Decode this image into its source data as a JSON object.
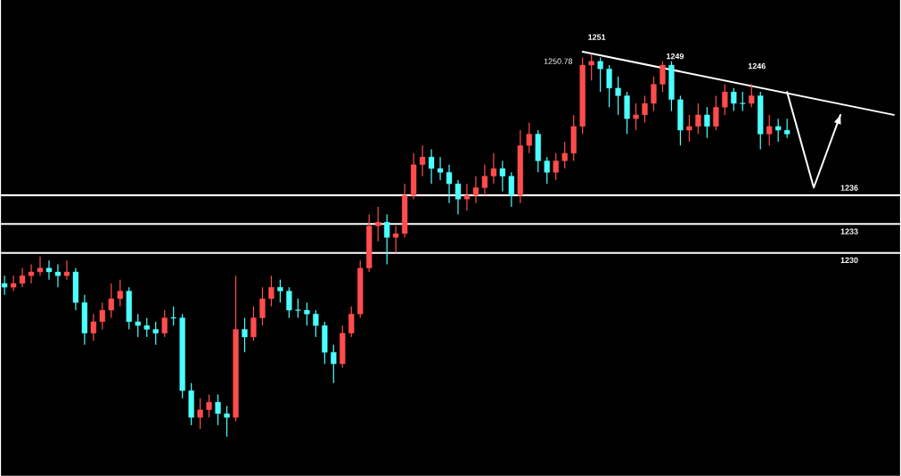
{
  "chart_data": {
    "type": "candlestick",
    "ylim": [
      1206.7,
      1256.4
    ],
    "categories": [
      null,
      null,
      null,
      null,
      null,
      null,
      null,
      null,
      null,
      null,
      null,
      null,
      null,
      null,
      null,
      null,
      null,
      null,
      null,
      null,
      null,
      null,
      null,
      null,
      null,
      null,
      null,
      null,
      null,
      null,
      null,
      null,
      null,
      null,
      null,
      null,
      null,
      null,
      null,
      null,
      null,
      null,
      null,
      null,
      null,
      null,
      null,
      null,
      null,
      null,
      null,
      null,
      null,
      null,
      null,
      null,
      null,
      null,
      null,
      null,
      null,
      null,
      null,
      null,
      null,
      null,
      null,
      null,
      null,
      null,
      null,
      null,
      null,
      null,
      null,
      null,
      null,
      null,
      null,
      null,
      null,
      null,
      null,
      null,
      null,
      null,
      null,
      null,
      null,
      null,
      null,
      null,
      null,
      null,
      null,
      null,
      null,
      null,
      null,
      null,
      null
    ],
    "ohlc": [
      [
        1226.8,
        1227.6,
        1225.6,
        1226.4
      ],
      [
        1226.4,
        1227.6,
        1226,
        1226.8
      ],
      [
        1226.8,
        1228.4,
        1226.4,
        1227.6
      ],
      [
        1227.6,
        1228.8,
        1226.8,
        1228
      ],
      [
        1228,
        1229.6,
        1227.6,
        1228.4
      ],
      [
        1228.4,
        1229.2,
        1227.2,
        1228
      ],
      [
        1228,
        1228.8,
        1226.4,
        1227.6
      ],
      [
        1227.6,
        1229.2,
        1227.2,
        1228
      ],
      [
        1228,
        1228.4,
        1224,
        1224.8
      ],
      [
        1224.8,
        1225.6,
        1220.4,
        1221.6
      ],
      [
        1221.6,
        1223.6,
        1220.8,
        1222.8
      ],
      [
        1222.8,
        1224.8,
        1222,
        1224
      ],
      [
        1224,
        1226.8,
        1223.2,
        1225.2
      ],
      [
        1225.2,
        1227.2,
        1224.4,
        1226
      ],
      [
        1226,
        1226.4,
        1222,
        1222.8
      ],
      [
        1222.8,
        1223.6,
        1221.2,
        1222.4
      ],
      [
        1222.4,
        1223.2,
        1221.2,
        1222
      ],
      [
        1222,
        1222.8,
        1220.4,
        1221.6
      ],
      [
        1221.6,
        1224,
        1221.2,
        1223.2
      ],
      [
        1223.2,
        1224.4,
        1222.4,
        1223.2
      ],
      [
        1223.2,
        1223.6,
        1214.8,
        1215.6
      ],
      [
        1215.6,
        1216.4,
        1212,
        1212.8
      ],
      [
        1212.8,
        1214.8,
        1211.6,
        1213.6
      ],
      [
        1213.6,
        1215.2,
        1212.8,
        1214.4
      ],
      [
        1214.4,
        1215.2,
        1212,
        1213.2
      ],
      [
        1213.2,
        1214,
        1210.8,
        1212.8
      ],
      [
        1212.8,
        1227.6,
        1212.4,
        1222
      ],
      [
        1222,
        1223.2,
        1219.6,
        1221.2
      ],
      [
        1221.2,
        1224.4,
        1220.8,
        1223.2
      ],
      [
        1223.2,
        1226.4,
        1222.4,
        1225.2
      ],
      [
        1225.2,
        1227.6,
        1224.4,
        1226.4
      ],
      [
        1226.4,
        1227.2,
        1224.8,
        1226
      ],
      [
        1226,
        1226.4,
        1223.2,
        1224
      ],
      [
        1224,
        1225.2,
        1223.2,
        1224
      ],
      [
        1224,
        1224.8,
        1222.4,
        1223.6
      ],
      [
        1223.6,
        1224,
        1221.2,
        1222.4
      ],
      [
        1222.4,
        1222.8,
        1218.4,
        1219.6
      ],
      [
        1219.6,
        1220.4,
        1216.4,
        1218.4
      ],
      [
        1218.4,
        1222.4,
        1218,
        1221.6
      ],
      [
        1221.6,
        1224.4,
        1221.2,
        1223.6
      ],
      [
        1223.6,
        1229.2,
        1223.2,
        1228.4
      ],
      [
        1228.4,
        1234,
        1228,
        1232.8
      ],
      [
        1232.8,
        1234.8,
        1231.2,
        1233.2
      ],
      [
        1233.2,
        1234,
        1228.8,
        1231.6
      ],
      [
        1231.6,
        1232.8,
        1230,
        1232
      ],
      [
        1232,
        1237.2,
        1231.6,
        1236
      ],
      [
        1236,
        1240.4,
        1235.6,
        1239.2
      ],
      [
        1239.2,
        1241.2,
        1238,
        1240
      ],
      [
        1240,
        1240.8,
        1237.2,
        1238.8
      ],
      [
        1238.8,
        1240,
        1237.6,
        1238.4
      ],
      [
        1238.4,
        1239.2,
        1235.2,
        1237.2
      ],
      [
        1237.2,
        1237.6,
        1234,
        1235.6
      ],
      [
        1235.6,
        1237.2,
        1234.4,
        1236
      ],
      [
        1236,
        1238,
        1235.2,
        1236.8
      ],
      [
        1236.8,
        1239.2,
        1236,
        1238
      ],
      [
        1238,
        1240.4,
        1237.2,
        1238.8
      ],
      [
        1238.8,
        1239.6,
        1236.4,
        1238
      ],
      [
        1238,
        1238.4,
        1234.8,
        1236
      ],
      [
        1236,
        1242.8,
        1235.2,
        1241.2
      ],
      [
        1241.2,
        1243.6,
        1240.4,
        1242.4
      ],
      [
        1242.4,
        1242.8,
        1238.4,
        1239.6
      ],
      [
        1239.6,
        1240,
        1237.2,
        1238.4
      ],
      [
        1238.4,
        1240.4,
        1237.6,
        1239.6
      ],
      [
        1239.6,
        1241.6,
        1238.8,
        1240.4
      ],
      [
        1240.4,
        1244.4,
        1239.6,
        1243.2
      ],
      [
        1243.2,
        1250.4,
        1242.4,
        1249.6
      ],
      [
        1249.6,
        1250.78,
        1248,
        1250
      ],
      [
        1250,
        1250.4,
        1246.8,
        1249.2
      ],
      [
        1249.2,
        1249.6,
        1245.2,
        1247.2
      ],
      [
        1247.2,
        1248.4,
        1244.4,
        1246.4
      ],
      [
        1246.4,
        1246.8,
        1242.4,
        1244
      ],
      [
        1244,
        1245.6,
        1242.8,
        1244.4
      ],
      [
        1244.4,
        1246.4,
        1243.6,
        1245.6
      ],
      [
        1245.6,
        1248.4,
        1244.8,
        1247.6
      ],
      [
        1247.6,
        1250,
        1246.8,
        1249.6
      ],
      [
        1249.6,
        1250,
        1244.8,
        1246
      ],
      [
        1246,
        1246.4,
        1241.2,
        1242.8
      ],
      [
        1242.8,
        1244.4,
        1241.6,
        1243.2
      ],
      [
        1243.2,
        1245.6,
        1242.4,
        1244.4
      ],
      [
        1244.4,
        1245.2,
        1242,
        1243.2
      ],
      [
        1243.2,
        1246.4,
        1242.8,
        1245.2
      ],
      [
        1245.2,
        1247.6,
        1244.4,
        1246.8
      ],
      [
        1246.8,
        1247.2,
        1244.8,
        1245.6
      ],
      [
        1245.6,
        1246.8,
        1244.8,
        1245.6
      ],
      [
        1245.6,
        1247.6,
        1245.2,
        1246.4
      ],
      [
        1246.4,
        1246.8,
        1240.8,
        1242.4
      ],
      [
        1242.4,
        1244.4,
        1241.2,
        1243.2
      ],
      [
        1243.2,
        1244,
        1241.6,
        1242.8
      ],
      [
        1242.8,
        1244,
        1242,
        1242.4
      ],
      null,
      null,
      null,
      null,
      null,
      null,
      null,
      null,
      null,
      null,
      null,
      null
    ],
    "colors": [
      "#4dffff",
      "#ff4d4d",
      "#ff4d4d",
      "#ff4d4d",
      "#ff4d4d",
      "#4dffff",
      "#4dffff",
      "#ff4d4d",
      "#4dffff",
      "#4dffff",
      "#ff4d4d",
      "#ff4d4d",
      "#ff4d4d",
      "#ff4d4d",
      "#4dffff",
      "#4dffff",
      "#4dffff",
      "#4dffff",
      "#ff4d4d",
      "#4dffff",
      "#4dffff",
      "#4dffff",
      "#ff4d4d",
      "#ff4d4d",
      "#4dffff",
      "#4dffff",
      "#ff4d4d",
      "#4dffff",
      "#ff4d4d",
      "#ff4d4d",
      "#ff4d4d",
      "#4dffff",
      "#4dffff",
      "#4dffff",
      "#4dffff",
      "#4dffff",
      "#4dffff",
      "#4dffff",
      "#ff4d4d",
      "#ff4d4d",
      "#ff4d4d",
      "#ff4d4d",
      "#ff4d4d",
      "#4dffff",
      "#ff4d4d",
      "#ff4d4d",
      "#ff4d4d",
      "#ff4d4d",
      "#4dffff",
      "#4dffff",
      "#4dffff",
      "#4dffff",
      "#ff4d4d",
      "#ff4d4d",
      "#ff4d4d",
      "#ff4d4d",
      "#4dffff",
      "#4dffff",
      "#ff4d4d",
      "#ff4d4d",
      "#4dffff",
      "#4dffff",
      "#ff4d4d",
      "#ff4d4d",
      "#ff4d4d",
      "#ff4d4d",
      "#ff4d4d",
      "#4dffff",
      "#4dffff",
      "#4dffff",
      "#4dffff",
      "#ff4d4d",
      "#ff4d4d",
      "#ff4d4d",
      "#ff4d4d",
      "#4dffff",
      "#4dffff",
      "#ff4d4d",
      "#ff4d4d",
      "#4dffff",
      "#ff4d4d",
      "#ff4d4d",
      "#4dffff",
      "#4dffff",
      "#ff4d4d",
      "#4dffff",
      "#ff4d4d",
      "#4dffff",
      "#4dffff",
      null,
      null,
      null,
      null,
      null,
      null,
      null,
      null,
      null,
      null,
      null,
      null
    ],
    "series": [
      {
        "type": "line",
        "color": "#ffffff",
        "values": [
          null,
          null,
          null,
          null,
          null,
          null,
          null,
          null,
          null,
          null,
          null,
          null,
          null,
          null,
          null,
          null,
          null,
          null,
          null,
          null,
          null,
          null,
          null,
          null,
          null,
          null,
          null,
          null,
          null,
          null,
          null,
          null,
          null,
          null,
          null,
          null,
          null,
          null,
          null,
          null,
          null,
          null,
          null,
          null,
          null,
          null,
          null,
          null,
          null,
          null,
          null,
          null,
          null,
          null,
          null,
          null,
          null,
          null,
          null,
          null,
          null,
          null,
          null,
          null,
          null,
          1251,
          null,
          null,
          null,
          null,
          null,
          null,
          null,
          null,
          null,
          null,
          null,
          null,
          null,
          null,
          null,
          null,
          null,
          null,
          null,
          null,
          null,
          null,
          null,
          null,
          null,
          null,
          null,
          null,
          null,
          null,
          null,
          null,
          null,
          null,
          1244.4
        ]
      },
      {
        "type": "line",
        "color": "#ffffff",
        "values": [
          null,
          null,
          null,
          null,
          null,
          null,
          null,
          null,
          null,
          null,
          null,
          null,
          null,
          null,
          null,
          null,
          null,
          null,
          null,
          null,
          null,
          null,
          null,
          null,
          null,
          null,
          null,
          null,
          null,
          null,
          null,
          null,
          null,
          null,
          null,
          null,
          null,
          null,
          null,
          null,
          null,
          null,
          null,
          null,
          null,
          null,
          null,
          null,
          null,
          null,
          null,
          null,
          null,
          null,
          null,
          null,
          null,
          null,
          null,
          null,
          null,
          null,
          null,
          null,
          null,
          null,
          null,
          null,
          null,
          null,
          null,
          null,
          null,
          null,
          null,
          null,
          null,
          null,
          null,
          null,
          null,
          null,
          null,
          null,
          null,
          null,
          null,
          null,
          1246.8,
          null,
          null,
          1236.8,
          null,
          null,
          1244.4,
          null,
          null,
          null,
          null,
          null,
          null
        ]
      }
    ],
    "ref_lines": [
      {
        "axis": "y",
        "value": 1230,
        "label": "1230",
        "color": "#ffffff"
      },
      {
        "axis": "y",
        "value": 1236,
        "label": "1236",
        "color": "#ffffff"
      },
      {
        "axis": "y",
        "value": 1233,
        "label": "1233",
        "color": "#ffffff"
      }
    ],
    "annotations": [
      {
        "text": "1251",
        "y": 1251
      },
      "1250.78",
      {
        "text": "1249",
        "y": 1249
      },
      "1246"
    ]
  }
}
